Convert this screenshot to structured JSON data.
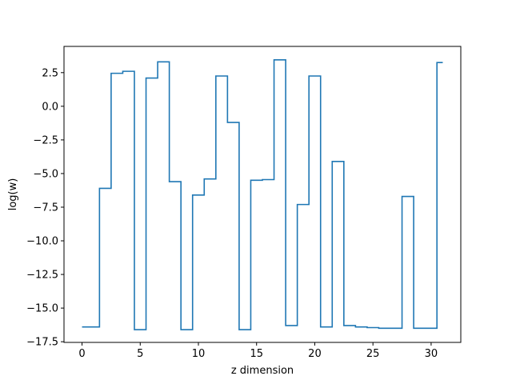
{
  "chart_data": {
    "type": "line",
    "drawstyle": "steps-mid",
    "title": "",
    "xlabel": "z dimension",
    "ylabel": "log(w)",
    "xlim": [
      -1.55,
      32.55
    ],
    "ylim": [
      -17.55,
      4.45
    ],
    "xticks": [
      0,
      5,
      10,
      15,
      20,
      25,
      30
    ],
    "xtick_labels": [
      "0",
      "5",
      "10",
      "15",
      "20",
      "25",
      "30"
    ],
    "yticks": [
      -17.5,
      -15.0,
      -12.5,
      -10.0,
      -7.5,
      -5.0,
      -2.5,
      0.0,
      2.5
    ],
    "ytick_labels": [
      "−17.5",
      "−15.0",
      "−12.5",
      "−10.0",
      "−7.5",
      "−5.0",
      "−2.5",
      "0.0",
      "2.5"
    ],
    "grid": false,
    "legend": "none",
    "series": [
      {
        "color": "#1f77b4",
        "x": [
          0,
          1,
          2,
          3,
          4,
          5,
          6,
          7,
          8,
          9,
          10,
          11,
          12,
          13,
          14,
          15,
          16,
          17,
          18,
          19,
          20,
          21,
          22,
          23,
          24,
          25,
          26,
          27,
          28,
          29,
          30,
          31
        ],
        "y": [
          -16.4,
          -16.4,
          -6.1,
          2.45,
          2.6,
          -16.6,
          2.1,
          3.3,
          -5.6,
          -16.6,
          -6.6,
          -5.4,
          2.25,
          -1.2,
          -16.6,
          -5.5,
          -5.45,
          3.45,
          -16.3,
          -7.3,
          2.25,
          -16.4,
          -4.1,
          -16.3,
          -16.4,
          -16.45,
          -16.5,
          -16.5,
          -6.7,
          -16.5,
          -16.5,
          3.25
        ]
      }
    ]
  }
}
